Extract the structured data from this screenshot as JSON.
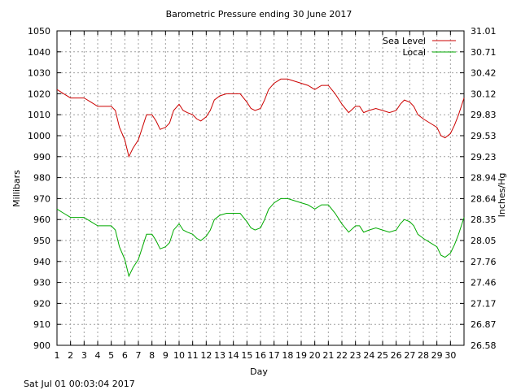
{
  "chart_data": {
    "type": "line",
    "title": "Barometric Pressure ending 30 June 2017",
    "xlabel": "Day",
    "ylabel": "Millibars",
    "y2label": "Inches/Hg",
    "footer": "Sat Jul 01 00:03:04 2017",
    "xlim": [
      1,
      31
    ],
    "ylim": [
      900,
      1050
    ],
    "grid": true,
    "legend_position": "top-right",
    "x_ticks": [
      "1",
      "2",
      "3",
      "4",
      "5",
      "6",
      "7",
      "8",
      "9",
      "10",
      "11",
      "12",
      "13",
      "14",
      "15",
      "16",
      "17",
      "18",
      "19",
      "20",
      "21",
      "22",
      "23",
      "24",
      "25",
      "26",
      "27",
      "28",
      "29",
      "30"
    ],
    "y_ticks": [
      "900",
      "910",
      "920",
      "930",
      "940",
      "950",
      "960",
      "970",
      "980",
      "990",
      "1000",
      "1010",
      "1020",
      "1030",
      "1040",
      "1050"
    ],
    "y2_ticks": [
      "26.58",
      "26.87",
      "27.17",
      "27.46",
      "27.76",
      "28.05",
      "28.35",
      "28.64",
      "28.94",
      "29.23",
      "29.53",
      "29.83",
      "30.12",
      "30.42",
      "30.71",
      "31.01"
    ],
    "series": [
      {
        "name": "Sea Level",
        "color": "#cc0000",
        "points": [
          [
            1.0,
            1022
          ],
          [
            1.5,
            1020
          ],
          [
            2.0,
            1018
          ],
          [
            2.5,
            1018
          ],
          [
            3.0,
            1018
          ],
          [
            3.5,
            1016
          ],
          [
            4.0,
            1014
          ],
          [
            4.5,
            1014
          ],
          [
            5.0,
            1014
          ],
          [
            5.3,
            1012
          ],
          [
            5.6,
            1004
          ],
          [
            6.0,
            998
          ],
          [
            6.3,
            990
          ],
          [
            6.6,
            994
          ],
          [
            7.0,
            998
          ],
          [
            7.3,
            1004
          ],
          [
            7.6,
            1010
          ],
          [
            8.0,
            1010
          ],
          [
            8.3,
            1007
          ],
          [
            8.6,
            1003
          ],
          [
            9.0,
            1004
          ],
          [
            9.3,
            1006
          ],
          [
            9.6,
            1012
          ],
          [
            10.0,
            1015
          ],
          [
            10.3,
            1012
          ],
          [
            10.6,
            1011
          ],
          [
            11.0,
            1010
          ],
          [
            11.3,
            1008
          ],
          [
            11.6,
            1007
          ],
          [
            12.0,
            1009
          ],
          [
            12.3,
            1012
          ],
          [
            12.6,
            1017
          ],
          [
            13.0,
            1019
          ],
          [
            13.5,
            1020
          ],
          [
            14.0,
            1020
          ],
          [
            14.5,
            1020
          ],
          [
            15.0,
            1016
          ],
          [
            15.3,
            1013
          ],
          [
            15.6,
            1012
          ],
          [
            16.0,
            1013
          ],
          [
            16.3,
            1017
          ],
          [
            16.6,
            1022
          ],
          [
            17.0,
            1025
          ],
          [
            17.5,
            1027
          ],
          [
            18.0,
            1027
          ],
          [
            18.5,
            1026
          ],
          [
            19.0,
            1025
          ],
          [
            19.5,
            1024
          ],
          [
            20.0,
            1022
          ],
          [
            20.5,
            1024
          ],
          [
            21.0,
            1024
          ],
          [
            21.5,
            1020
          ],
          [
            22.0,
            1015
          ],
          [
            22.5,
            1011
          ],
          [
            23.0,
            1014
          ],
          [
            23.3,
            1014
          ],
          [
            23.6,
            1011
          ],
          [
            24.0,
            1012
          ],
          [
            24.5,
            1013
          ],
          [
            25.0,
            1012
          ],
          [
            25.5,
            1011
          ],
          [
            26.0,
            1012
          ],
          [
            26.3,
            1015
          ],
          [
            26.6,
            1017
          ],
          [
            27.0,
            1016
          ],
          [
            27.3,
            1014
          ],
          [
            27.6,
            1010
          ],
          [
            28.0,
            1008
          ],
          [
            28.5,
            1006
          ],
          [
            29.0,
            1004
          ],
          [
            29.3,
            1000
          ],
          [
            29.6,
            999
          ],
          [
            30.0,
            1001
          ],
          [
            30.3,
            1005
          ],
          [
            30.6,
            1010
          ],
          [
            31.0,
            1018
          ]
        ]
      },
      {
        "name": "Local",
        "color": "#00aa00",
        "points": [
          [
            1.0,
            965
          ],
          [
            1.5,
            963
          ],
          [
            2.0,
            961
          ],
          [
            2.5,
            961
          ],
          [
            3.0,
            961
          ],
          [
            3.5,
            959
          ],
          [
            4.0,
            957
          ],
          [
            4.5,
            957
          ],
          [
            5.0,
            957
          ],
          [
            5.3,
            955
          ],
          [
            5.6,
            947
          ],
          [
            6.0,
            941
          ],
          [
            6.3,
            933
          ],
          [
            6.6,
            937
          ],
          [
            7.0,
            941
          ],
          [
            7.3,
            947
          ],
          [
            7.6,
            953
          ],
          [
            8.0,
            953
          ],
          [
            8.3,
            950
          ],
          [
            8.6,
            946
          ],
          [
            9.0,
            947
          ],
          [
            9.3,
            949
          ],
          [
            9.6,
            955
          ],
          [
            10.0,
            958
          ],
          [
            10.3,
            955
          ],
          [
            10.6,
            954
          ],
          [
            11.0,
            953
          ],
          [
            11.3,
            951
          ],
          [
            11.6,
            950
          ],
          [
            12.0,
            952
          ],
          [
            12.3,
            955
          ],
          [
            12.6,
            960
          ],
          [
            13.0,
            962
          ],
          [
            13.5,
            963
          ],
          [
            14.0,
            963
          ],
          [
            14.5,
            963
          ],
          [
            15.0,
            959
          ],
          [
            15.3,
            956
          ],
          [
            15.6,
            955
          ],
          [
            16.0,
            956
          ],
          [
            16.3,
            960
          ],
          [
            16.6,
            965
          ],
          [
            17.0,
            968
          ],
          [
            17.5,
            970
          ],
          [
            18.0,
            970
          ],
          [
            18.5,
            969
          ],
          [
            19.0,
            968
          ],
          [
            19.5,
            967
          ],
          [
            20.0,
            965
          ],
          [
            20.5,
            967
          ],
          [
            21.0,
            967
          ],
          [
            21.5,
            963
          ],
          [
            22.0,
            958
          ],
          [
            22.5,
            954
          ],
          [
            23.0,
            957
          ],
          [
            23.3,
            957
          ],
          [
            23.6,
            954
          ],
          [
            24.0,
            955
          ],
          [
            24.5,
            956
          ],
          [
            25.0,
            955
          ],
          [
            25.5,
            954
          ],
          [
            26.0,
            955
          ],
          [
            26.3,
            958
          ],
          [
            26.6,
            960
          ],
          [
            27.0,
            959
          ],
          [
            27.3,
            957
          ],
          [
            27.6,
            953
          ],
          [
            28.0,
            951
          ],
          [
            28.5,
            949
          ],
          [
            29.0,
            947
          ],
          [
            29.3,
            943
          ],
          [
            29.6,
            942
          ],
          [
            30.0,
            944
          ],
          [
            30.3,
            948
          ],
          [
            30.6,
            953
          ],
          [
            31.0,
            961
          ]
        ]
      }
    ]
  }
}
